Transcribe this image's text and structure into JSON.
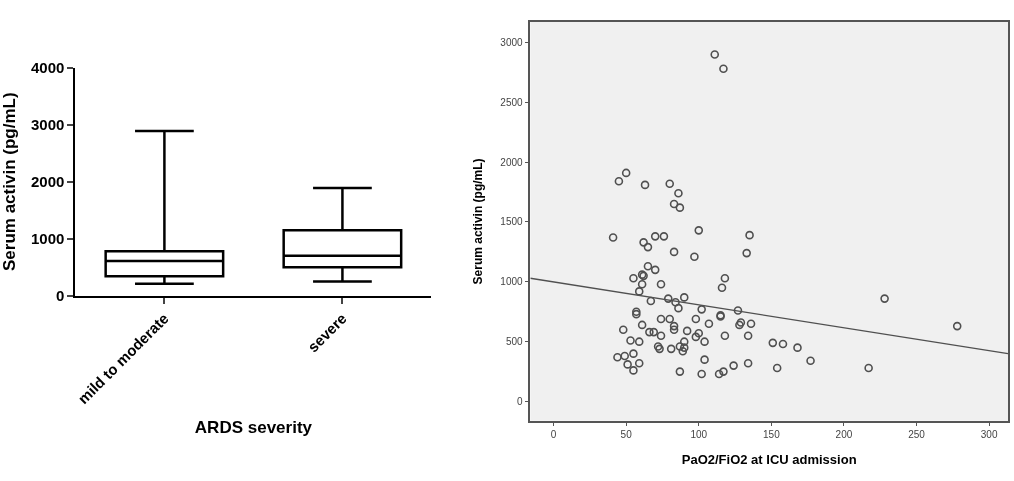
{
  "chart_data": [
    {
      "type": "box",
      "xlabel": "ARDS severity",
      "ylabel": "Serum activin (pg/mL)",
      "categories": [
        "mild to moderate",
        "severe"
      ],
      "color": "#000000",
      "boxes": [
        {
          "low": 210,
          "q1": 340,
          "median": 610,
          "q3": 780,
          "high": 2890
        },
        {
          "low": 250,
          "q1": 500,
          "median": 700,
          "q3": 1150,
          "high": 1890
        }
      ],
      "ylim": [
        0,
        4000
      ],
      "yticks": [
        0,
        1000,
        2000,
        3000,
        4000
      ],
      "grid": false
    },
    {
      "type": "scatter",
      "xlabel": "PaO2/FiO2 at ICU admission",
      "ylabel": "Serum activin (pg/mL)",
      "grid": false,
      "xlim": [
        -16,
        313
      ],
      "ylim": [
        -160,
        3170
      ],
      "xticks": [
        0,
        50,
        100,
        150,
        200,
        250,
        300
      ],
      "yticks": [
        0,
        500,
        1000,
        1500,
        2000,
        2500,
        3000
      ],
      "series": [
        {
          "type": "scatter",
          "marker": "circle",
          "color": "#505050",
          "x": [
            111,
            117,
            45,
            50,
            63,
            80,
            86,
            83,
            87,
            100,
            41,
            62,
            65,
            70,
            76,
            83,
            97,
            135,
            133,
            65,
            70,
            61,
            62,
            55,
            118,
            116,
            61,
            74,
            59,
            67,
            79,
            90,
            84,
            86,
            102,
            127,
            57,
            57,
            115,
            115,
            74,
            80,
            98,
            107,
            129,
            128,
            136,
            61,
            83,
            83,
            48,
            92,
            66,
            69,
            74,
            100,
            98,
            118,
            134,
            53,
            59,
            90,
            104,
            151,
            72,
            73,
            81,
            87,
            90,
            89,
            44,
            49,
            55,
            104,
            51,
            59,
            55,
            124,
            134,
            87,
            102,
            114,
            117,
            228,
            158,
            168,
            177,
            154,
            217,
            278
          ],
          "values": [
            2900,
            2780,
            1840,
            1910,
            1810,
            1820,
            1740,
            1650,
            1620,
            1430,
            1370,
            1330,
            1290,
            1380,
            1380,
            1250,
            1210,
            1390,
            1240,
            1130,
            1100,
            1060,
            1050,
            1030,
            1030,
            950,
            980,
            980,
            920,
            840,
            860,
            870,
            830,
            780,
            770,
            760,
            750,
            730,
            720,
            710,
            690,
            690,
            690,
            650,
            660,
            640,
            650,
            640,
            630,
            600,
            600,
            590,
            580,
            580,
            550,
            570,
            540,
            550,
            550,
            510,
            500,
            500,
            500,
            490,
            460,
            440,
            440,
            460,
            450,
            420,
            370,
            380,
            400,
            350,
            310,
            320,
            260,
            300,
            320,
            250,
            230,
            230,
            250,
            860,
            480,
            450,
            340,
            280,
            280,
            630
          ]
        },
        {
          "type": "line",
          "color": "#505050",
          "x": [
            -16,
            313
          ],
          "values": [
            1030,
            400
          ]
        }
      ]
    }
  ]
}
